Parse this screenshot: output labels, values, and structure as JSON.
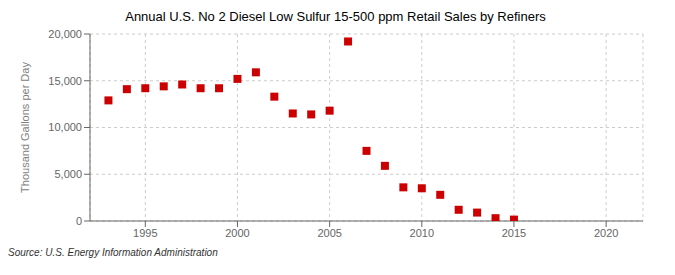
{
  "chart_data": {
    "type": "scatter",
    "title": "Annual U.S. No 2 Diesel Low Sulfur 15-500 ppm Retail Sales by Refiners",
    "ylabel": "Thousand Gallons per Day",
    "annotations": [
      "Source: U.S. Energy Information Administration"
    ],
    "x": [
      1993,
      1994,
      1995,
      1996,
      1997,
      1998,
      1999,
      2000,
      2001,
      2002,
      2003,
      2004,
      2005,
      2006,
      2007,
      2008,
      2009,
      2010,
      2011,
      2012,
      2013,
      2014,
      2015
    ],
    "values": [
      12900,
      14100,
      14200,
      14400,
      14600,
      14200,
      14200,
      15200,
      15900,
      13300,
      11500,
      11400,
      11800,
      19200,
      7500,
      5900,
      3600,
      3500,
      2800,
      1200,
      900,
      300,
      150
    ],
    "color": "#CC0000",
    "marker": "square",
    "xlim": [
      1992,
      2022
    ],
    "ylim": [
      0,
      20000
    ],
    "xticks": [
      1995,
      2000,
      2005,
      2010,
      2015,
      2020
    ],
    "yticks": [
      0,
      {
        "value": 5000,
        "label": "5,000"
      },
      {
        "value": 10000,
        "label": "10,000"
      },
      {
        "value": 15000,
        "label": "15,000"
      },
      {
        "value": 20000,
        "label": "20,000"
      }
    ],
    "grid": true
  }
}
